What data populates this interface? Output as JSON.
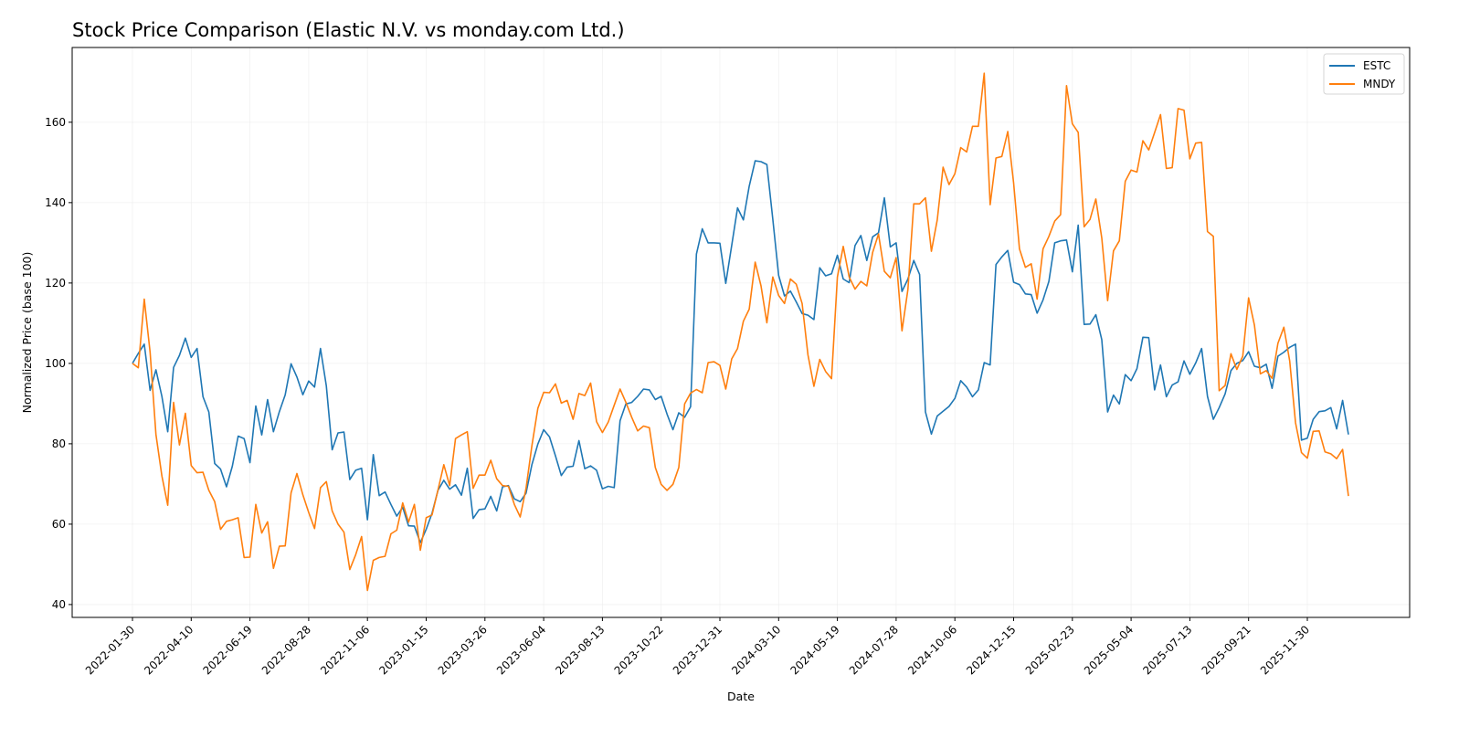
{
  "chart_data": {
    "type": "line",
    "title": "Stock Price Comparison (Elastic N.V. vs monday.com Ltd.)",
    "xlabel": "Date",
    "ylabel": "Normalized Price (base 100)",
    "ylim": [
      36.8,
      178.6
    ],
    "yticks": [
      40,
      60,
      80,
      100,
      120,
      140,
      160
    ],
    "xticks": [
      "2022-01-30",
      "2022-04-10",
      "2022-06-19",
      "2022-08-28",
      "2022-11-06",
      "2023-01-15",
      "2023-03-26",
      "2023-06-04",
      "2023-08-13",
      "2023-10-22",
      "2023-12-31",
      "2024-03-10",
      "2024-05-19",
      "2024-07-28",
      "2024-10-06",
      "2024-12-15",
      "2025-02-23",
      "2025-05-04",
      "2025-07-13",
      "2025-09-21",
      "2025-11-30"
    ],
    "grid": true,
    "legend_position": "top-right",
    "series": [
      {
        "name": "ESTC",
        "color": "#1f77b4",
        "values": [
          100,
          102.5,
          104.8,
          93.3,
          98.4,
          91.8,
          83,
          99,
          102,
          106.3,
          101.5,
          103.7,
          91.7,
          87.9,
          75.1,
          73.7,
          69.3,
          74.4,
          81.9,
          81.3,
          75.3,
          89.4,
          82.2,
          91,
          83,
          88,
          92.2,
          99.9,
          96.6,
          92.2,
          95.6,
          94.1,
          103.7,
          94.4,
          78.5,
          82.7,
          82.9,
          71.1,
          73.4,
          73.9,
          61.1,
          77.3,
          67.1,
          68,
          64.9,
          62,
          64.2,
          59.6,
          59.5,
          55.4,
          58.7,
          62.7,
          68.4,
          70.9,
          68.7,
          69.8,
          67.2,
          73.9,
          61.4,
          63.6,
          63.8,
          66.9,
          63.3,
          69.3,
          69.6,
          66.3,
          65.6,
          67.7,
          74.8,
          79.9,
          83.5,
          81.7,
          77,
          72.1,
          74.2,
          74.4,
          80.8,
          73.8,
          74.5,
          73.4,
          68.8,
          69.4,
          69.1,
          85.7,
          89.9,
          90.3,
          91.8,
          93.6,
          93.4,
          91,
          91.8,
          87.4,
          83.5,
          87.7,
          86.6,
          89.2,
          127.2,
          133.5,
          130,
          130,
          129.9,
          119.9,
          129.3,
          138.7,
          135.7,
          144.1,
          150.4,
          150.2,
          149.5,
          135.9,
          121.9,
          116.8,
          118,
          115.3,
          112.4,
          112,
          110.9,
          123.8,
          121.8,
          122.3,
          126.9,
          121,
          120.1,
          129.3,
          131.8,
          125.6,
          131.5,
          132.5,
          141.2,
          129,
          130,
          117.9,
          121,
          125.6,
          122.1,
          87.9,
          82.4,
          86.9,
          88.1,
          89.3,
          91.3,
          95.7,
          94.1,
          91.7,
          93.4,
          100.2,
          99.6,
          124.6,
          126.5,
          128.1,
          120.2,
          119.6,
          117.3,
          117.1,
          112.5,
          115.8,
          120.4,
          130,
          130.5,
          130.7,
          122.8,
          134.4,
          109.7,
          109.8,
          112.1,
          105.9,
          87.9,
          92.1,
          89.9,
          97.2,
          95.7,
          98.7,
          106.5,
          106.4,
          93.4,
          99.6,
          91.7,
          94.6,
          95.4,
          100.6,
          97.3,
          100.1,
          103.7,
          91.8,
          86.1,
          89,
          92.4,
          98.2,
          100,
          100.7,
          102.9,
          99.3,
          98.9,
          99.8,
          93.8,
          101.8,
          102.8,
          104,
          104.8,
          80.9,
          81.4,
          86.1,
          88,
          88.2,
          89,
          83.7,
          90.8,
          82.3
        ]
      },
      {
        "name": "MNDY",
        "color": "#ff7f0e",
        "values": [
          100,
          98.9,
          116,
          102.8,
          82.3,
          72,
          64.7,
          90.3,
          79.7,
          87.6,
          74.6,
          72.8,
          72.9,
          68.4,
          65.6,
          58.7,
          60.7,
          61.1,
          61.6,
          51.7,
          51.8,
          64.9,
          57.8,
          60.6,
          49,
          54.5,
          54.6,
          67.8,
          72.6,
          67.3,
          62.9,
          58.9,
          69.1,
          70.6,
          63.3,
          60,
          58,
          48.7,
          52.4,
          56.9,
          43.5,
          51,
          51.7,
          52,
          57.6,
          58.5,
          65.3,
          60.5,
          64.9,
          53.5,
          61.6,
          62.3,
          68.5,
          74.8,
          69.6,
          81.3,
          82.2,
          83,
          68.9,
          72.2,
          72.2,
          75.9,
          71.3,
          69.6,
          69.4,
          64.9,
          61.8,
          68.9,
          79.5,
          88.8,
          92.8,
          92.7,
          94.9,
          90.1,
          90.8,
          86.1,
          92.5,
          92,
          95.1,
          85.5,
          82.8,
          85.4,
          89.6,
          93.6,
          90.3,
          86.6,
          83.2,
          84.4,
          84,
          74.1,
          69.9,
          68.4,
          69.9,
          74.1,
          89.9,
          92.6,
          93.5,
          92.7,
          100.2,
          100.4,
          99.5,
          93.6,
          101.1,
          103.7,
          110.5,
          113.5,
          125.2,
          119.3,
          110.1,
          121.5,
          116.9,
          114.9,
          121,
          119.7,
          114.9,
          102.1,
          94.3,
          101,
          98,
          96.2,
          121.5,
          129.1,
          121.5,
          118.5,
          120.4,
          119.3,
          127.6,
          132.2,
          122.9,
          121.3,
          126.3,
          108.1,
          118.4,
          139.7,
          139.7,
          141.2,
          127.9,
          135.7,
          148.8,
          144.5,
          147.2,
          153.7,
          152.6,
          159,
          159,
          172.2,
          139.5,
          151.1,
          151.5,
          157.7,
          144.9,
          128.5,
          123.9,
          124.8,
          116,
          128.5,
          131.6,
          135.4,
          137,
          169.1,
          159.6,
          157.5,
          134,
          135.8,
          140.9,
          131.2,
          115.6,
          128,
          130.5,
          145.3,
          148.1,
          147.6,
          155.4,
          153.1,
          157.4,
          161.9,
          148.5,
          148.7,
          163.4,
          163,
          150.9,
          154.8,
          155,
          132.8,
          131.6,
          93.2,
          94.5,
          102.4,
          98.5,
          101.8,
          116.3,
          109.5,
          97.4,
          98.2,
          96.3,
          105,
          109,
          100.6,
          85.2,
          77.8,
          76.4,
          83.1,
          83.2,
          78,
          77.5,
          76.3,
          78.6,
          67
        ]
      }
    ]
  }
}
